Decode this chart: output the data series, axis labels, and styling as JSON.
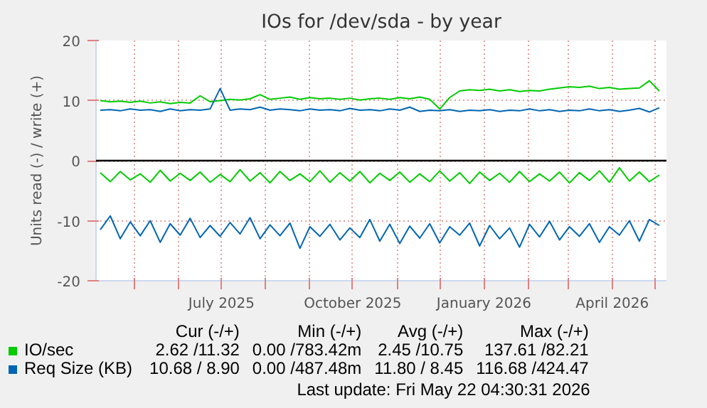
{
  "chart_data": {
    "type": "line",
    "title": "IOs for /dev/sda - by year",
    "ylabel": "Units read (-) / write (+)",
    "x": [
      "2025-04-07",
      "2025-04-14",
      "2025-04-21",
      "2025-04-28",
      "2025-05-05",
      "2025-05-12",
      "2025-05-19",
      "2025-05-26",
      "2025-06-02",
      "2025-06-09",
      "2025-06-16",
      "2025-06-23",
      "2025-06-30",
      "2025-07-07",
      "2025-07-14",
      "2025-07-21",
      "2025-07-28",
      "2025-08-04",
      "2025-08-11",
      "2025-08-18",
      "2025-08-25",
      "2025-09-01",
      "2025-09-08",
      "2025-09-15",
      "2025-09-22",
      "2025-09-29",
      "2025-10-06",
      "2025-10-13",
      "2025-10-20",
      "2025-10-27",
      "2025-11-03",
      "2025-11-10",
      "2025-11-17",
      "2025-11-24",
      "2025-12-01",
      "2025-12-08",
      "2025-12-15",
      "2025-12-22",
      "2025-12-29",
      "2026-01-05",
      "2026-01-12",
      "2026-01-19",
      "2026-01-26",
      "2026-02-02",
      "2026-02-09",
      "2026-02-16",
      "2026-02-23",
      "2026-03-02",
      "2026-03-09",
      "2026-03-16",
      "2026-03-23",
      "2026-03-30",
      "2026-04-06",
      "2026-04-13",
      "2026-04-20",
      "2026-04-27",
      "2026-05-04"
    ],
    "series": [
      {
        "name": "IO/sec",
        "color": "#00cc00",
        "values": [
          10.0,
          9.8,
          9.9,
          9.7,
          9.9,
          9.6,
          9.8,
          9.5,
          9.7,
          9.6,
          10.8,
          9.8,
          10.0,
          10.2,
          10.1,
          10.3,
          11.0,
          10.2,
          10.4,
          10.6,
          10.2,
          10.5,
          10.3,
          10.4,
          10.2,
          10.4,
          10.1,
          10.3,
          10.4,
          10.2,
          10.5,
          10.3,
          10.6,
          10.2,
          8.6,
          10.5,
          11.6,
          11.8,
          11.7,
          11.9,
          11.6,
          11.8,
          11.5,
          11.7,
          11.6,
          11.9,
          12.1,
          12.3,
          12.2,
          12.4,
          12.0,
          12.2,
          11.9,
          12.0,
          12.1,
          13.3,
          11.6
        ]
      },
      {
        "color": "#00cc00",
        "values": [
          -2.0,
          -3.5,
          -1.8,
          -3.2,
          -2.2,
          -3.6,
          -1.6,
          -3.4,
          -2.1,
          -3.3,
          -1.9,
          -3.6,
          -2.3,
          -3.5,
          -1.5,
          -3.4,
          -2.0,
          -3.7,
          -1.8,
          -3.3,
          -2.2,
          -3.5,
          -1.7,
          -3.6,
          -2.0,
          -3.4,
          -1.8,
          -3.7,
          -2.1,
          -3.3,
          -1.9,
          -3.6,
          -2.2,
          -3.5,
          -1.7,
          -3.4,
          -2.0,
          -3.8,
          -1.9,
          -3.3,
          -2.1,
          -3.6,
          -1.8,
          -3.5,
          -2.2,
          -3.4,
          -1.9,
          -3.7,
          -2.0,
          -3.3,
          -1.7,
          -3.6,
          -1.2,
          -3.4,
          -1.9,
          -3.5,
          -2.4
        ]
      },
      {
        "name": "Req Size (KB)",
        "color": "#0066b3",
        "values": [
          8.4,
          8.5,
          8.3,
          8.6,
          8.4,
          8.5,
          8.2,
          8.6,
          8.3,
          8.5,
          8.4,
          8.6,
          12.0,
          8.4,
          8.6,
          8.5,
          8.9,
          8.4,
          8.6,
          8.5,
          8.3,
          8.6,
          8.4,
          8.5,
          8.3,
          8.7,
          8.4,
          8.5,
          8.3,
          8.6,
          8.4,
          8.9,
          8.2,
          8.4,
          8.3,
          8.5,
          8.2,
          8.4,
          8.3,
          8.5,
          8.2,
          8.4,
          8.3,
          8.6,
          8.3,
          8.5,
          8.2,
          8.4,
          8.3,
          8.6,
          8.3,
          8.5,
          8.2,
          8.4,
          8.7,
          8.1,
          8.8
        ]
      },
      {
        "color": "#0066b3",
        "values": [
          -11.5,
          -9.2,
          -13.0,
          -10.2,
          -12.5,
          -10.0,
          -13.6,
          -10.5,
          -12.4,
          -9.6,
          -12.8,
          -10.8,
          -12.6,
          -10.3,
          -12.2,
          -9.5,
          -13.0,
          -10.7,
          -12.5,
          -10.4,
          -14.6,
          -11.0,
          -12.6,
          -10.6,
          -13.2,
          -11.2,
          -12.8,
          -9.8,
          -13.4,
          -10.6,
          -13.8,
          -10.9,
          -12.9,
          -10.5,
          -13.7,
          -11.0,
          -12.4,
          -10.4,
          -14.2,
          -10.8,
          -13.0,
          -11.2,
          -14.4,
          -10.6,
          -12.7,
          -10.1,
          -13.2,
          -11.0,
          -12.6,
          -10.5,
          -13.6,
          -11.0,
          -12.4,
          -10.0,
          -13.4,
          -9.8,
          -10.8
        ]
      }
    ],
    "xlim": [
      "2025-04-04",
      "2026-05-09"
    ],
    "xticks": [
      {
        "value": "2025-05-01",
        "label": null
      },
      {
        "value": "2025-06-01",
        "label": null
      },
      {
        "value": "2025-07-01",
        "label": "July 2025"
      },
      {
        "value": "2025-08-01",
        "label": null
      },
      {
        "value": "2025-09-01",
        "label": null
      },
      {
        "value": "2025-10-01",
        "label": "October 2025"
      },
      {
        "value": "2025-11-01",
        "label": null
      },
      {
        "value": "2025-12-01",
        "label": null
      },
      {
        "value": "2026-01-01",
        "label": "January 2026"
      },
      {
        "value": "2026-02-01",
        "label": null
      },
      {
        "value": "2026-03-01",
        "label": null
      },
      {
        "value": "2026-04-01",
        "label": "April 2026"
      },
      {
        "value": "2026-05-01",
        "label": null
      }
    ],
    "ylim": [
      -20,
      20
    ],
    "yticks": [
      -20,
      -10,
      0,
      10,
      20
    ],
    "grid": true,
    "legend": "bottom",
    "line_style": "solid",
    "ref_lines": [
      {
        "axis": "y",
        "value": 0,
        "color": "#000000"
      }
    ],
    "annotations": [
      "Cur (-/+)",
      "Min (-/+)",
      "Avg (-/+)",
      "Max (-/+)",
      "2.62 /11.32",
      "0.00 /783.42m",
      "2.45 /10.75",
      "137.61 /82.21",
      "10.68 / 8.90",
      "0.00 /487.48m",
      "11.80 / 8.45",
      "116.68 /424.47",
      "Last update: Fri May 22 04:30:31 2026"
    ]
  }
}
